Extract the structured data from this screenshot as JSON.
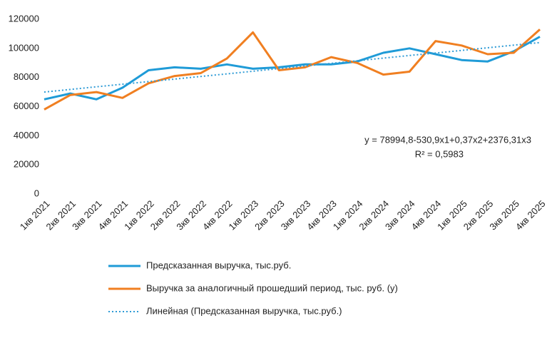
{
  "chart_data": {
    "type": "line",
    "categories": [
      "1кв 2021",
      "2кв 2021",
      "3кв 2021",
      "4кв 2021",
      "1кв 2022",
      "2кв 2022",
      "3кв 2022",
      "4кв 2022",
      "1кв 2023",
      "2кв 2023",
      "3кв 2023",
      "4кв 2023",
      "1кв 2024",
      "2кв 2024",
      "3кв 2024",
      "4кв 2024",
      "1кв 2025",
      "2кв 2025",
      "3кв 2025",
      "4кв 2025"
    ],
    "series": [
      {
        "name": "Предсказанная выручка, тыс.руб.",
        "color": "#1f9bd7",
        "line_style": "solid",
        "values": [
          65000,
          69000,
          65000,
          73000,
          85000,
          87000,
          86000,
          89000,
          86000,
          87000,
          89000,
          89000,
          91000,
          97000,
          100000,
          96000,
          92000,
          91000,
          98000,
          108000
        ]
      },
      {
        "name": "Выручка за аналогичный прошедший период, тыс. руб. (y)",
        "color": "#f07f21",
        "line_style": "solid",
        "values": [
          58000,
          68000,
          70000,
          66000,
          76000,
          81000,
          83000,
          93000,
          111000,
          85000,
          87000,
          94000,
          90000,
          82000,
          84000,
          105000,
          102000,
          96000,
          97000,
          113000
        ]
      },
      {
        "name": "Линейная (Предсказанная выручка, тыс.руб.)",
        "color": "#2e9bd6",
        "line_style": "dotted",
        "values": [
          70000,
          71800,
          73600,
          75400,
          77200,
          78900,
          80700,
          82500,
          84300,
          86100,
          87900,
          89700,
          91500,
          93300,
          95100,
          96800,
          98600,
          100400,
          102200,
          104000
        ]
      }
    ],
    "annotations": [
      "y = 78994,8-530,9x1+0,37x2+2376,31x3",
      "R² = 0,5983"
    ],
    "ylim": [
      0,
      120000
    ],
    "yticks": [
      0,
      20000,
      40000,
      60000,
      80000,
      100000,
      120000
    ],
    "grid": false
  }
}
